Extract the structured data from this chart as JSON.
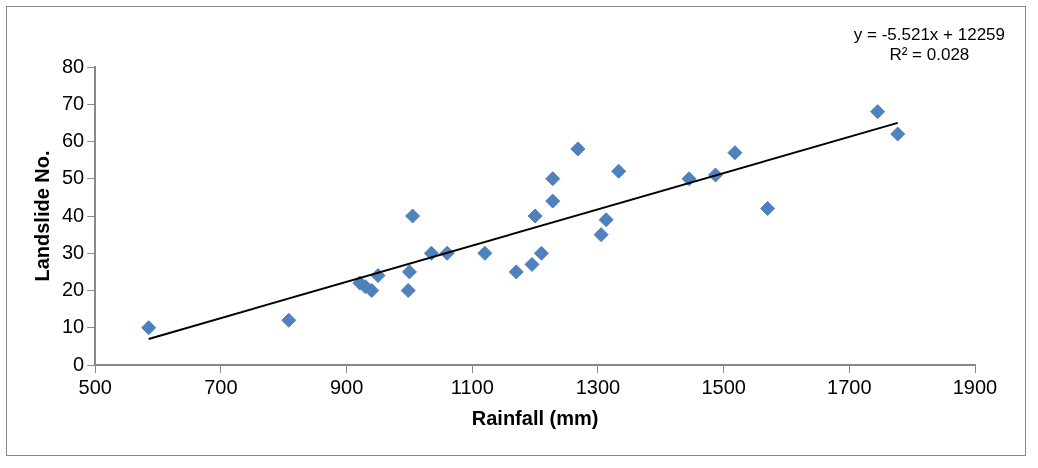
{
  "chart_data": {
    "type": "scatter",
    "xlabel": "Rainfall (mm)",
    "ylabel": "Landslide No.",
    "grid": false,
    "legend": false,
    "xlim": [
      500,
      1900
    ],
    "xticks": [
      500,
      700,
      900,
      1100,
      1300,
      1500,
      1700,
      1900
    ],
    "ylim": [
      0,
      80
    ],
    "yticks": [
      0,
      10,
      20,
      30,
      40,
      50,
      60,
      70,
      80
    ],
    "annotations": [
      "y = -5.521x + 12259",
      "R² = 0.028"
    ],
    "series": [
      {
        "marker": "diamond",
        "color": "#4f81bd",
        "x": [
          585,
          808,
          921,
          930,
          940,
          950,
          998,
          1000,
          1005,
          1035,
          1060,
          1120,
          1170,
          1195,
          1200,
          1210,
          1228,
          1228,
          1268,
          1305,
          1313,
          1333,
          1445,
          1487,
          1518,
          1570,
          1745,
          1777
        ],
        "values": [
          10,
          12,
          22,
          21,
          20,
          24,
          20,
          25,
          40,
          30,
          30,
          30,
          25,
          27,
          40,
          30,
          44,
          50,
          58,
          35,
          39,
          52,
          50,
          51,
          57,
          42,
          68,
          62
        ]
      },
      {
        "type": "line",
        "marker": "none",
        "color": "#000000",
        "x": [
          585,
          1777
        ],
        "values": [
          7,
          65
        ]
      }
    ]
  }
}
